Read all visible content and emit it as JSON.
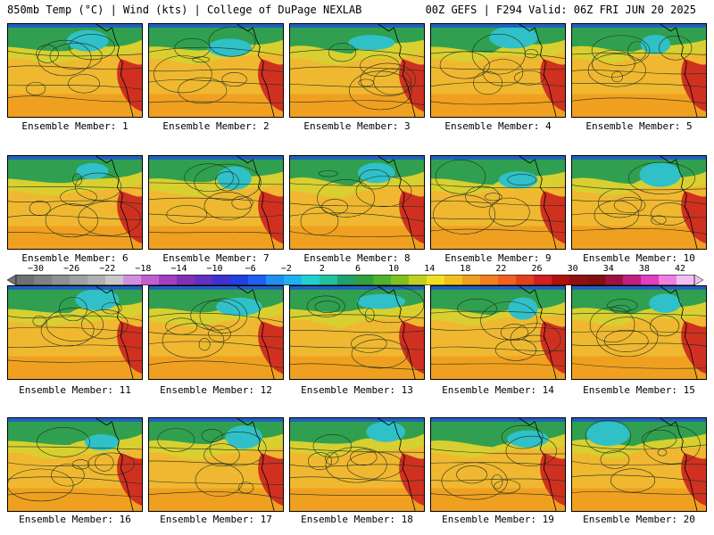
{
  "header": {
    "left": "850mb Temp (°C) | Wind (kts) | College of DuPage NEXLAB",
    "right": "00Z GEFS | F294 Valid: 06Z FRI JUN 20 2025"
  },
  "members": [
    "Ensemble Member: 1",
    "Ensemble Member: 2",
    "Ensemble Member: 3",
    "Ensemble Member: 4",
    "Ensemble Member: 5",
    "Ensemble Member: 6",
    "Ensemble Member: 7",
    "Ensemble Member: 8",
    "Ensemble Member: 9",
    "Ensemble Member: 10",
    "Ensemble Member: 11",
    "Ensemble Member: 12",
    "Ensemble Member: 13",
    "Ensemble Member: 14",
    "Ensemble Member: 15",
    "Ensemble Member: 16",
    "Ensemble Member: 17",
    "Ensemble Member: 18",
    "Ensemble Member: 19",
    "Ensemble Member: 20"
  ],
  "colorbar": {
    "labels": [
      "−30",
      "−26",
      "−22",
      "−18",
      "−14",
      "−10",
      "−6",
      "−2",
      "2",
      "6",
      "10",
      "14",
      "18",
      "22",
      "26",
      "30",
      "34",
      "38",
      "42"
    ],
    "colors": [
      "#707070",
      "#808080",
      "#909090",
      "#a0a0a0",
      "#b0b0b0",
      "#c8c8c8",
      "#d090e0",
      "#c060d0",
      "#a040c0",
      "#8030b0",
      "#6030c0",
      "#4030d0",
      "#2040e0",
      "#2060f0",
      "#2090f0",
      "#20b0f0",
      "#20d0d0",
      "#20c0a0",
      "#20a070",
      "#30a040",
      "#50b030",
      "#80c020",
      "#c0d020",
      "#f0e020",
      "#f0c020",
      "#f0a020",
      "#f08020",
      "#f06020",
      "#e04020",
      "#d02020",
      "#b01010",
      "#901010",
      "#801010",
      "#a01040",
      "#c02080",
      "#e040c0",
      "#f080e0",
      "#f0c0f0"
    ]
  },
  "palette": {
    "cold": "#30c0c8",
    "cool": "#30a050",
    "mild": "#d8d030",
    "warm": "#f0a020",
    "hot": "#d03020",
    "ocean": "#f0b830"
  }
}
